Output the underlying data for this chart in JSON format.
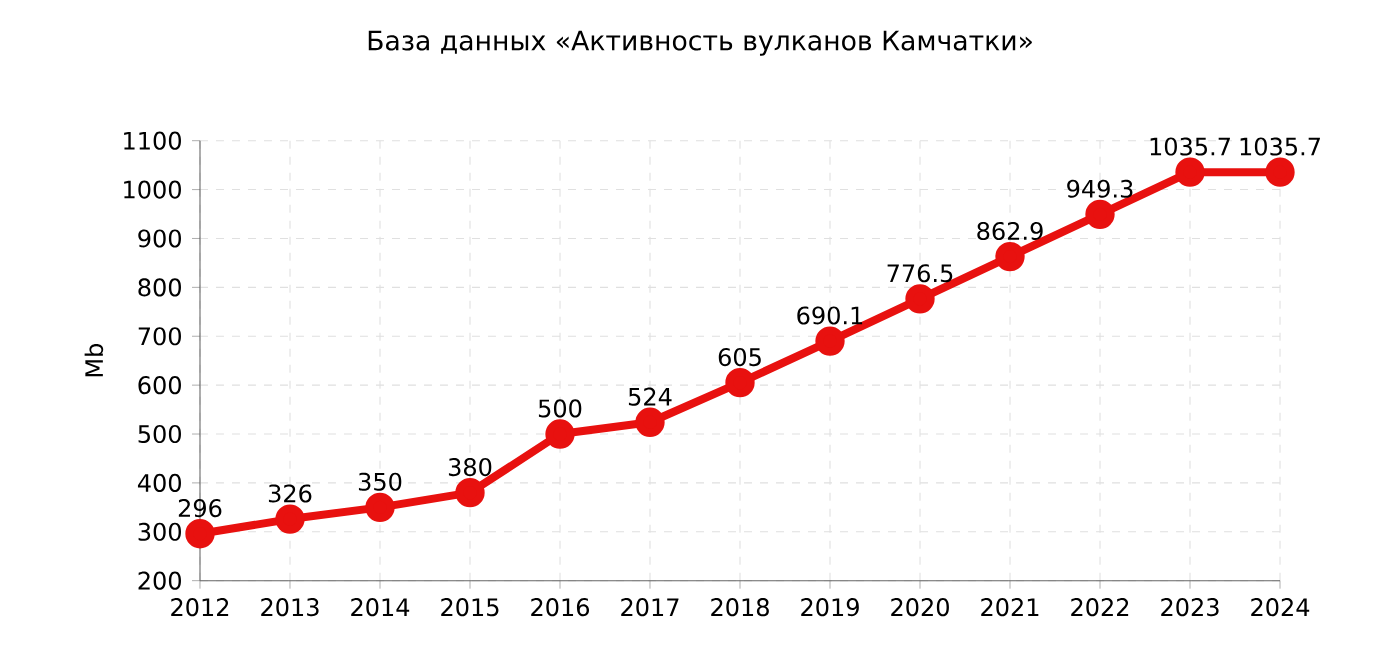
{
  "chart_data": {
    "type": "line",
    "title": "База данных «Активность вулканов Камчатки»",
    "ylabel": "Mb",
    "x": [
      2012,
      2013,
      2014,
      2015,
      2016,
      2017,
      2018,
      2019,
      2020,
      2021,
      2022,
      2023,
      2024
    ],
    "series": [
      {
        "color": "#e8110f",
        "values": [
          296,
          326,
          350,
          380,
          500,
          524,
          605,
          690.1,
          776.5,
          862.9,
          949.3,
          1035.7,
          1035.7
        ],
        "value_labels": [
          "296",
          "326",
          "350",
          "380",
          "500",
          "524",
          "605",
          "690.1",
          "776.5",
          "862.9",
          "949.3",
          "1035.7",
          "1035.7"
        ]
      }
    ],
    "xlim": [
      2012,
      2024
    ],
    "xticks": [
      2012,
      2013,
      2014,
      2015,
      2016,
      2017,
      2018,
      2019,
      2020,
      2021,
      2022,
      2023,
      2024
    ],
    "ylim": [
      200,
      1100
    ],
    "yticks": [
      200,
      300,
      400,
      500,
      600,
      700,
      800,
      900,
      1000,
      1100
    ],
    "grid": true,
    "marker": "circle",
    "line_style": "solid"
  }
}
